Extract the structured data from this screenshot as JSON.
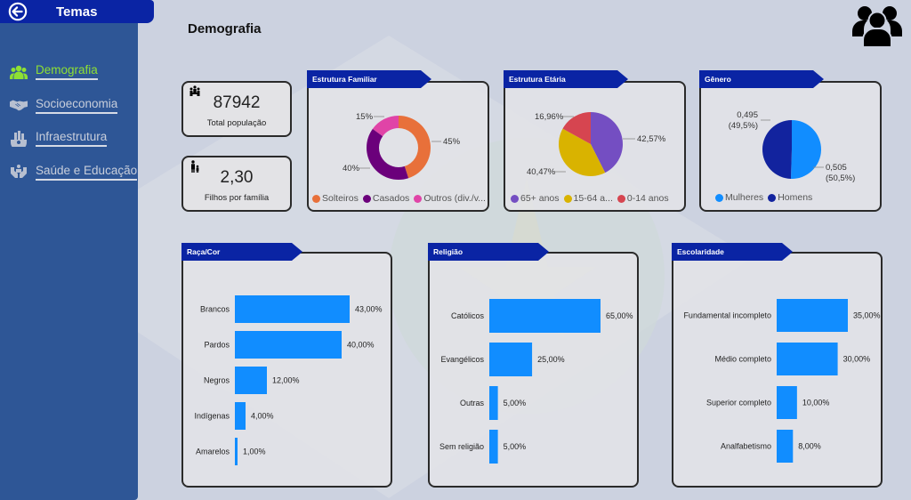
{
  "sidebar": {
    "header_title": "Temas",
    "items": [
      {
        "label": "Demografia",
        "icon": "people-group-icon",
        "active": true
      },
      {
        "label": "Socioeconomia",
        "icon": "handshake-icon",
        "active": false
      },
      {
        "label": "Infraestrutura",
        "icon": "infrastructure-icon",
        "active": false
      },
      {
        "label": "Saúde e Educação",
        "icon": "health-education-icon",
        "active": false
      }
    ]
  },
  "header": {
    "title": "Demografia"
  },
  "colors": {
    "sidebar": "#2e5696",
    "accent_tab": "#0a24a4",
    "active_nav": "#8ee033",
    "bar": "#118dff"
  },
  "kpis": [
    {
      "value": "87942",
      "label": "Total população",
      "icon": "family-icon"
    },
    {
      "value": "2,30",
      "label": "Filhos por família",
      "icon": "parent-child-icon"
    }
  ],
  "chart_data": [
    {
      "id": "estrutura-familiar",
      "type": "pie",
      "donut": true,
      "title": "Estrutura Familiar",
      "categories": [
        "Solteiros",
        "Casados",
        "Outros (div./v..."
      ],
      "values": [
        45,
        40,
        15
      ],
      "data_labels": [
        "45%",
        "40%",
        "15%"
      ],
      "colors": [
        "#e8703a",
        "#6b007b",
        "#e044a7"
      ],
      "legend": "bottom"
    },
    {
      "id": "estrutura-etaria",
      "type": "pie",
      "donut": false,
      "title": "Estrutura Etária",
      "categories": [
        "65+ anos",
        "15-64 a...",
        "0-14 anos"
      ],
      "values": [
        42.57,
        40.47,
        16.96
      ],
      "data_labels": [
        "42,57%",
        "40,47%",
        "16,96%"
      ],
      "colors": [
        "#744ec2",
        "#d9b300",
        "#d64550"
      ],
      "legend": "bottom"
    },
    {
      "id": "genero",
      "type": "pie",
      "donut": false,
      "title": "Gênero",
      "categories": [
        "Mulheres",
        "Homens"
      ],
      "values": [
        0.505,
        0.495
      ],
      "data_labels": [
        "0,505\n(50,5%)",
        "0,495\n(49,5%)"
      ],
      "colors": [
        "#118dff",
        "#12239e"
      ],
      "legend": "bottom"
    },
    {
      "id": "raca-cor",
      "type": "bar",
      "orientation": "horizontal",
      "title": "Raça/Cor",
      "categories": [
        "Brancos",
        "Pardos",
        "Negros",
        "Indígenas",
        "Amarelos"
      ],
      "values": [
        43,
        40,
        12,
        4,
        1
      ],
      "data_labels": [
        "43,00%",
        "40,00%",
        "12,00%",
        "4,00%",
        "1,00%"
      ],
      "color": "#118dff",
      "xlim": [
        0,
        43
      ]
    },
    {
      "id": "religiao",
      "type": "bar",
      "orientation": "horizontal",
      "title": "Religião",
      "categories": [
        "Católicos",
        "Evangélicos",
        "Outras",
        "Sem religião"
      ],
      "values": [
        65,
        25,
        5,
        5
      ],
      "data_labels": [
        "65,00%",
        "25,00%",
        "5,00%",
        "5,00%"
      ],
      "color": "#118dff",
      "xlim": [
        0,
        65
      ]
    },
    {
      "id": "escolaridade",
      "type": "bar",
      "orientation": "horizontal",
      "title": "Escolaridade",
      "categories": [
        "Fundamental incompleto",
        "Médio completo",
        "Superior completo",
        "Analfabetismo"
      ],
      "values": [
        35,
        30,
        10,
        8
      ],
      "data_labels": [
        "35,00%",
        "30,00%",
        "10,00%",
        "8,00%"
      ],
      "color": "#118dff",
      "xlim": [
        0,
        35
      ]
    }
  ]
}
